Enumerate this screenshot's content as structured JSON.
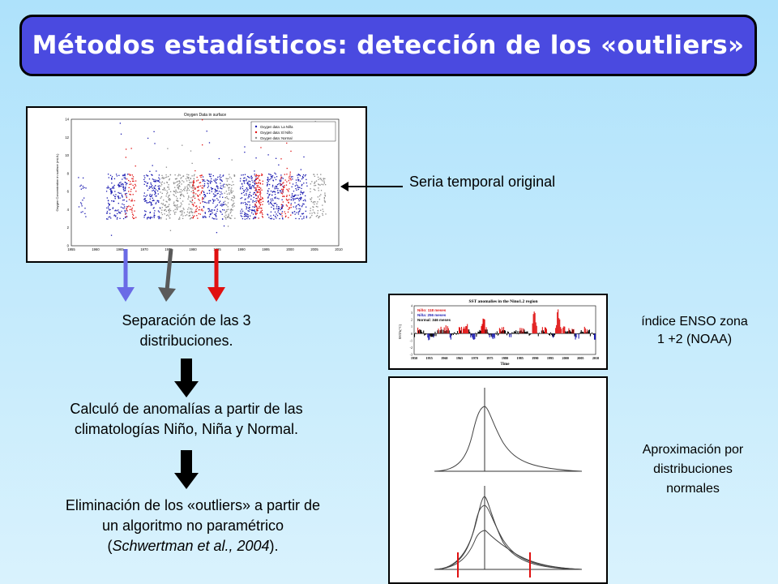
{
  "title": "Métodos estadísticos: detección de los «outliers»",
  "labels": {
    "serie_original": "Seria temporal original",
    "separacion_1": "Separación de las 3",
    "separacion_2": "distribuciones.",
    "anomalias_1": "Calculó de anomalías a partir de las",
    "anomalias_2": "climatologías Niño, Niña y Normal.",
    "elim_1": "Eliminación de los «outliers» a partir de",
    "elim_2": "un algoritmo no paramétrico",
    "elim_3_open": "(",
    "elim_3_italic": "Schwertman et al., 2004",
    "elim_3_close": ").",
    "enso_1": "índice ENSO zona",
    "enso_2": "1 +2 (NOAA)",
    "aprox_1": "Aproximación por",
    "aprox_2": "distribuciones",
    "aprox_3": "normales"
  },
  "oxygen_chart": {
    "title": "Oxygen Data in surface",
    "ylabel": "Oxygen Concentration in surface (mL/L)",
    "legend": [
      "Oxygen data: La Niña",
      "Oxygen data: El Niño",
      "Oxygen data: Normal"
    ],
    "y_ticks": [
      "14",
      "12",
      "10",
      "8",
      "6",
      "4",
      "2",
      "0"
    ],
    "x_ticks": [
      "1955",
      "1960",
      "1965",
      "1970",
      "1975",
      "1980",
      "1985",
      "1990",
      "1995",
      "2000",
      "2005",
      "2010"
    ],
    "colors": {
      "nina": "#1a1ab0",
      "nino": "#e01010",
      "normal": "#8a8a8a"
    }
  },
  "sst_chart": {
    "title": "SST anomalies in the Nino1.2 region",
    "ylabel": "SSTA(°C)",
    "xlabel": "Time",
    "legend": [
      "Niño: 118 meses",
      "Niña: 256 meses",
      "Normal: 346 meses"
    ],
    "y_ticks": [
      "4",
      "3",
      "2",
      "1",
      "0",
      "-1",
      "-2",
      "-3"
    ],
    "x_ticks": [
      "1950",
      "1955",
      "1960",
      "1965",
      "1970",
      "1975",
      "1980",
      "1985",
      "1990",
      "1995",
      "2000",
      "2005",
      "2010"
    ]
  },
  "arrow_colors": {
    "blue": "#6a6ae6",
    "gray": "#5a5a5a",
    "red": "#e01010"
  }
}
